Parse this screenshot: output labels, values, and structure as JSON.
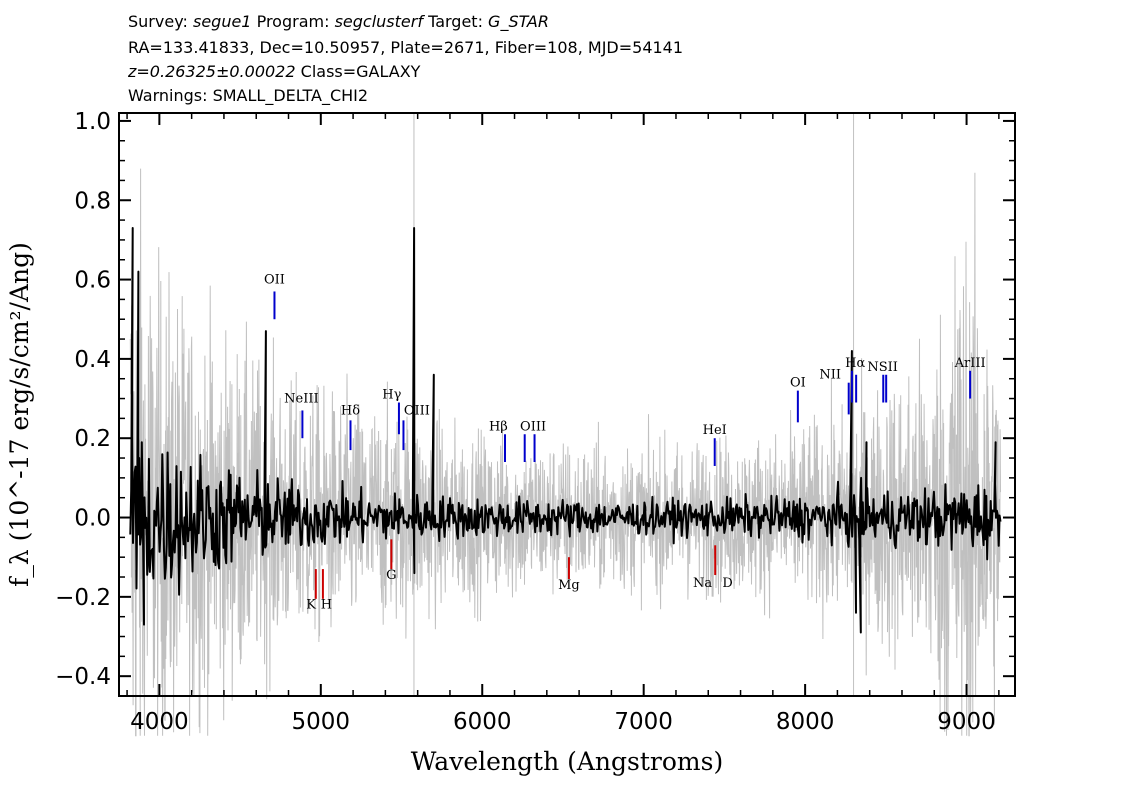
{
  "header": {
    "survey_label": "Survey:",
    "survey": "segue1",
    "program_label": "Program:",
    "program": "segclusterf",
    "target_label": "Target:",
    "target": "G_STAR",
    "line2": "RA=133.41833, Dec=10.50957, Plate=2671, Fiber=108, MJD=54141",
    "redshift": "z=0.26325±0.00022",
    "class": "Class=GALAXY",
    "warnings": "Warnings: SMALL_DELTA_CHI2"
  },
  "chart_data": {
    "type": "line",
    "xlabel": "Wavelength (Angstroms)",
    "ylabel": "f_λ (10^-17 erg/s/cm²/Ang)",
    "xlim": [
      3750,
      9300
    ],
    "ylim": [
      -0.45,
      1.02
    ],
    "x_ticks": [
      4000,
      5000,
      6000,
      7000,
      8000,
      9000
    ],
    "y_ticks": [
      -0.4,
      -0.2,
      0.0,
      0.2,
      0.4,
      0.6,
      0.8,
      1.0
    ],
    "y_tick_labels": [
      "−0.4",
      "−0.2",
      "0.0",
      "0.2",
      "0.4",
      "0.6",
      "0.8",
      "1.0"
    ],
    "x_range": [
      3820,
      9210
    ],
    "noise_band_color": "#c0c0c0",
    "spectrum_color": "#000000",
    "spectrum_envelope": [
      {
        "x": 3820,
        "amp": 0.3
      },
      {
        "x": 3900,
        "amp": 0.28
      },
      {
        "x": 4000,
        "amp": 0.24
      },
      {
        "x": 4200,
        "amp": 0.2
      },
      {
        "x": 4400,
        "amp": 0.16
      },
      {
        "x": 4700,
        "amp": 0.12
      },
      {
        "x": 5000,
        "amp": 0.09
      },
      {
        "x": 5500,
        "amp": 0.07
      },
      {
        "x": 6000,
        "amp": 0.06
      },
      {
        "x": 7000,
        "amp": 0.05
      },
      {
        "x": 7800,
        "amp": 0.06
      },
      {
        "x": 8300,
        "amp": 0.08
      },
      {
        "x": 8800,
        "amp": 0.09
      },
      {
        "x": 9210,
        "amp": 0.12
      }
    ],
    "noise_envelope": [
      {
        "x": 3820,
        "amp": 0.6
      },
      {
        "x": 3900,
        "amp": 0.5
      },
      {
        "x": 4000,
        "amp": 0.4
      },
      {
        "x": 4400,
        "amp": 0.3
      },
      {
        "x": 4800,
        "amp": 0.22
      },
      {
        "x": 5500,
        "amp": 0.18
      },
      {
        "x": 6000,
        "amp": 0.14
      },
      {
        "x": 7000,
        "amp": 0.12
      },
      {
        "x": 7800,
        "amp": 0.14
      },
      {
        "x": 8300,
        "amp": 0.18
      },
      {
        "x": 8800,
        "amp": 0.3
      },
      {
        "x": 8950,
        "amp": 0.5
      },
      {
        "x": 9100,
        "amp": 0.4
      },
      {
        "x": 9210,
        "amp": 0.3
      }
    ],
    "spikes": [
      {
        "x": 3835,
        "y": 0.73
      },
      {
        "x": 3870,
        "y": 0.62
      },
      {
        "x": 3905,
        "y": -0.27
      },
      {
        "x": 4660,
        "y": 0.47
      },
      {
        "x": 5578,
        "y": 0.73
      },
      {
        "x": 5580,
        "y": -0.14
      },
      {
        "x": 5700,
        "y": 0.36
      },
      {
        "x": 8290,
        "y": 0.42
      },
      {
        "x": 8315,
        "y": -0.24
      },
      {
        "x": 8345,
        "y": -0.29
      },
      {
        "x": 8380,
        "y": 0.19
      },
      {
        "x": 9180,
        "y": 0.19
      }
    ],
    "sky_lines": [
      5577,
      8300
    ],
    "emission_lines": [
      {
        "label": "OII",
        "x": 4713,
        "y0": 0.5,
        "y1": 0.57
      },
      {
        "label": "NeIII",
        "x": 4886,
        "y0": 0.2,
        "y1": 0.27
      },
      {
        "label": "Hδ",
        "x": 5184,
        "y0": 0.17,
        "y1": 0.245
      },
      {
        "label": "Hγ",
        "x": 5484,
        "y0": 0.21,
        "y1": 0.29
      },
      {
        "label": "OIII",
        "x": 5512,
        "y0": 0.17,
        "y1": 0.245
      },
      {
        "label": "Hβ",
        "x": 6141,
        "y0": 0.14,
        "y1": 0.21
      },
      {
        "label": "OIII",
        "x": 6263,
        "y0": 0.14,
        "y1": 0.21
      },
      {
        "label": "OIII",
        "x": 6324,
        "y0": 0.14,
        "y1": 0.21
      },
      {
        "label": "HeI",
        "x": 7440,
        "y0": 0.13,
        "y1": 0.2
      },
      {
        "label": "OI",
        "x": 7955,
        "y0": 0.24,
        "y1": 0.32
      },
      {
        "label": "NII",
        "x": 8270,
        "y0": 0.26,
        "y1": 0.34
      },
      {
        "label": "Hα",
        "x": 8290,
        "y0": 0.29,
        "y1": 0.37
      },
      {
        "label": "NII",
        "x": 8316,
        "y0": 0.29,
        "y1": 0.36
      },
      {
        "label": "SII",
        "x": 8484,
        "y0": 0.29,
        "y1": 0.36
      },
      {
        "label": "SII",
        "x": 8502,
        "y0": 0.29,
        "y1": 0.36
      },
      {
        "label": "ArIII",
        "x": 9022,
        "y0": 0.3,
        "y1": 0.37
      }
    ],
    "emission_labels": [
      {
        "text": "OII",
        "x": 4713,
        "y": 0.59
      },
      {
        "text": "NeIII",
        "x": 4880,
        "y": 0.29
      },
      {
        "text": "Hδ",
        "x": 5184,
        "y": 0.26
      },
      {
        "text": "Hγ",
        "x": 5440,
        "y": 0.3
      },
      {
        "text": "OIII",
        "x": 5595,
        "y": 0.26
      },
      {
        "text": "Hβ",
        "x": 6100,
        "y": 0.22
      },
      {
        "text": "OIII",
        "x": 6315,
        "y": 0.22
      },
      {
        "text": "HeI",
        "x": 7440,
        "y": 0.21
      },
      {
        "text": "OI",
        "x": 7955,
        "y": 0.33
      },
      {
        "text": "NII",
        "x": 8155,
        "y": 0.35
      },
      {
        "text": "Hα",
        "x": 8310,
        "y": 0.38
      },
      {
        "text": "NSII",
        "x": 8480,
        "y": 0.37
      },
      {
        "text": "ArIII",
        "x": 9022,
        "y": 0.38
      }
    ],
    "absorption_lines": [
      {
        "label": "K",
        "x": 4969,
        "y0": -0.13,
        "y1": -0.205
      },
      {
        "label": "H",
        "x": 5013,
        "y0": -0.13,
        "y1": -0.205
      },
      {
        "label": "G",
        "x": 5437,
        "y0": -0.055,
        "y1": -0.13
      },
      {
        "label": "Mg",
        "x": 6537,
        "y0": -0.1,
        "y1": -0.155
      },
      {
        "label": "Na D",
        "x": 7443,
        "y0": -0.07,
        "y1": -0.145
      }
    ],
    "absorption_labels": [
      {
        "text": "K",
        "x": 4940,
        "y": -0.23
      },
      {
        "text": "H",
        "x": 5035,
        "y": -0.23
      },
      {
        "text": "G",
        "x": 5437,
        "y": -0.155
      },
      {
        "text": "Mg",
        "x": 6537,
        "y": -0.18
      },
      {
        "text": "Na",
        "x": 7365,
        "y": -0.175
      },
      {
        "text": "D",
        "x": 7520,
        "y": -0.175
      }
    ],
    "emission_color": "#0000cc",
    "absorption_color": "#cc0000"
  }
}
